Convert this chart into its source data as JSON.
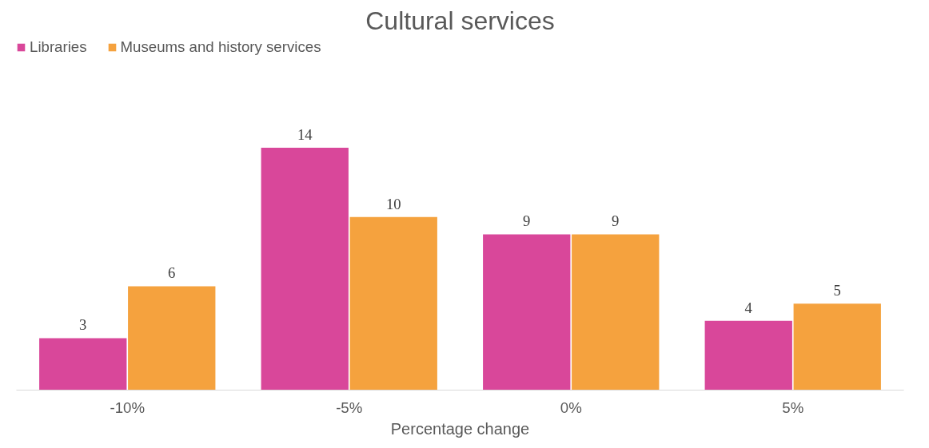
{
  "chart_data": {
    "type": "bar",
    "title": "Cultural services",
    "xlabel": "Percentage change",
    "categories": [
      "-10%",
      "-5%",
      "0%",
      "5%"
    ],
    "series": [
      {
        "name": "Libraries",
        "color": "#d9479a",
        "values": [
          3,
          14,
          9,
          4
        ]
      },
      {
        "name": "Museums and history services",
        "color": "#f5a23e",
        "values": [
          6,
          10,
          9,
          5
        ]
      }
    ],
    "data_labels": true,
    "legend": "top left"
  }
}
